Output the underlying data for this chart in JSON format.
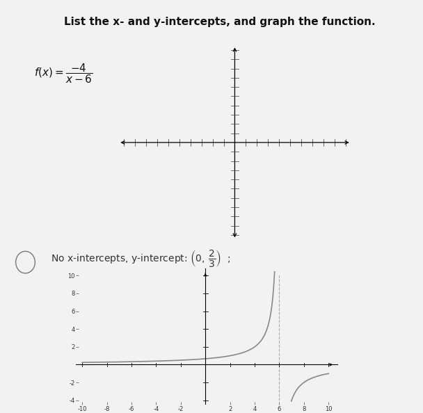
{
  "title": "List the x- and y-intercepts, and graph the function.",
  "background_color": "#f2f2f2",
  "graph_xlim": [
    -10,
    10
  ],
  "graph_ylim": [
    -4,
    10
  ],
  "graph_xticks": [
    -10,
    -8,
    -6,
    -4,
    -2,
    2,
    4,
    6,
    8,
    10
  ],
  "graph_yticks": [
    -4,
    -2,
    2,
    4,
    6,
    8,
    10
  ],
  "graph_ytick_labels": [
    "-4",
    "-2",
    "2",
    "4",
    "6",
    "8",
    "10"
  ],
  "graph_xtick_labels": [
    "-10",
    "-8",
    "-6",
    "-4",
    "-2",
    "2",
    "4",
    "6",
    "8",
    "10"
  ],
  "vertical_asymptote": 6,
  "numerator": -4,
  "denominator_shift": 6,
  "curve_color": "#888888",
  "asymptote_color": "#aaaaaa",
  "title_fontsize": 11,
  "func_fontsize": 10,
  "answer_fontsize": 10,
  "tick_fontsize": 6,
  "blank_xlim": [
    -10,
    10
  ],
  "blank_ylim": [
    -10,
    10
  ]
}
